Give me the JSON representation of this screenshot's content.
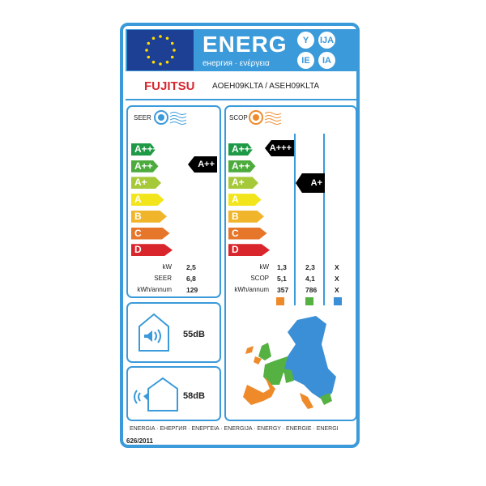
{
  "header": {
    "title": "ENERG",
    "subtitle": "енергия · ενέργεια",
    "suffixes": [
      "Y",
      "IJA",
      "IE",
      "IA"
    ]
  },
  "brand": "FUJITSU",
  "model": "AOEH09KLTA / ASEH09KLTA",
  "classes": [
    "A+++",
    "A++",
    "A+",
    "A",
    "B",
    "C",
    "D"
  ],
  "class_colors": [
    "#1e9a46",
    "#4dab3e",
    "#a6c93a",
    "#f2e51b",
    "#f0b52a",
    "#e6762a",
    "#d9262c"
  ],
  "cooling": {
    "label": "SEER",
    "rating": "A++",
    "rows": [
      {
        "label": "kW",
        "value": "2,5"
      },
      {
        "label": "SEER",
        "value": "6,8"
      },
      {
        "label": "kWh/annum",
        "value": "129"
      }
    ]
  },
  "heating": {
    "label": "SCOP",
    "ratings": [
      "A+++",
      "A+",
      ""
    ],
    "rows": [
      {
        "label": "kW",
        "values": [
          "1,3",
          "2,3",
          "X"
        ]
      },
      {
        "label": "SCOP",
        "values": [
          "5,1",
          "4,1",
          "X"
        ]
      },
      {
        "label": "kWh/annum",
        "values": [
          "357",
          "786",
          "X"
        ]
      }
    ],
    "zone_colors": [
      "#ef8a2a",
      "#55b142",
      "#3b8fd6"
    ]
  },
  "noise": {
    "indoor": "55dB",
    "outdoor": "58dB"
  },
  "footer": {
    "languages": "ENERGIA · ЕНЕРГИЯ · ΕΝΕΡΓΕΙΑ · ENERGIJA · ENERGY · ENERGIE · ENERGI",
    "regulation": "626/2011"
  }
}
